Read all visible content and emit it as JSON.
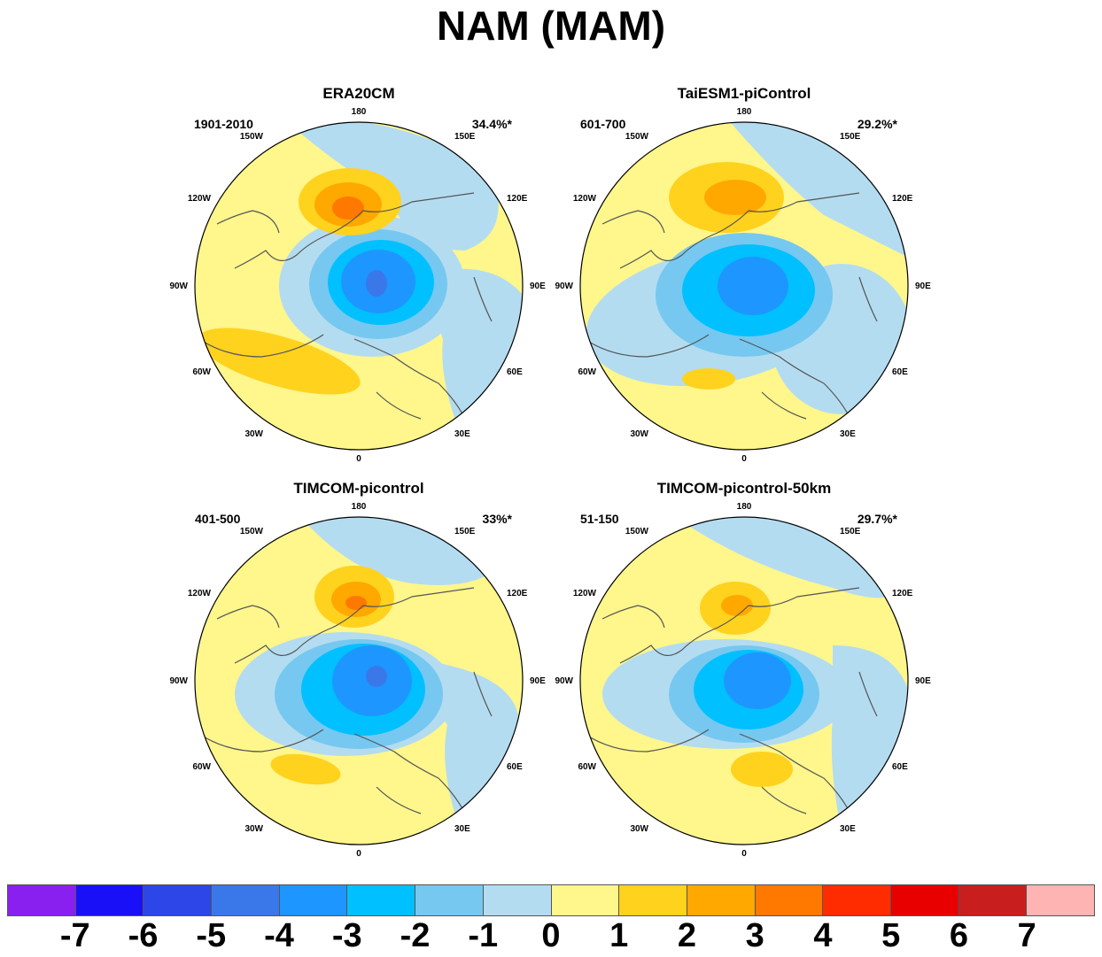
{
  "title": "NAM (MAM)",
  "lon_labels": [
    "180",
    "150E",
    "120E",
    "90E",
    "60E",
    "30E",
    "0",
    "30W",
    "60W",
    "90W",
    "120W",
    "150W"
  ],
  "panels": [
    {
      "title": "ERA20CM",
      "period": "1901-2010",
      "variance": "34.4%*"
    },
    {
      "title": "TaiESM1-piControl",
      "period": "601-700",
      "variance": "29.2%*"
    },
    {
      "title": "TIMCOM-picontrol",
      "period": "401-500",
      "variance": "33%*"
    },
    {
      "title": "TIMCOM-picontrol-50km",
      "period": "51-150",
      "variance": "29.7%*"
    }
  ],
  "colorbar": {
    "colors": [
      "#8a20f0",
      "#1a10f8",
      "#2c46e8",
      "#3a78ea",
      "#1e96ff",
      "#00c0ff",
      "#76c8f0",
      "#b4dcf0",
      "#fff68c",
      "#ffd21e",
      "#ffa800",
      "#ff7800",
      "#ff2c00",
      "#e80000",
      "#c81e1e",
      "#ffb4b4"
    ],
    "labels": [
      "-7",
      "-6",
      "-5",
      "-4",
      "-3",
      "-2",
      "-1",
      "0",
      "1",
      "2",
      "3",
      "4",
      "5",
      "6",
      "7"
    ]
  }
}
